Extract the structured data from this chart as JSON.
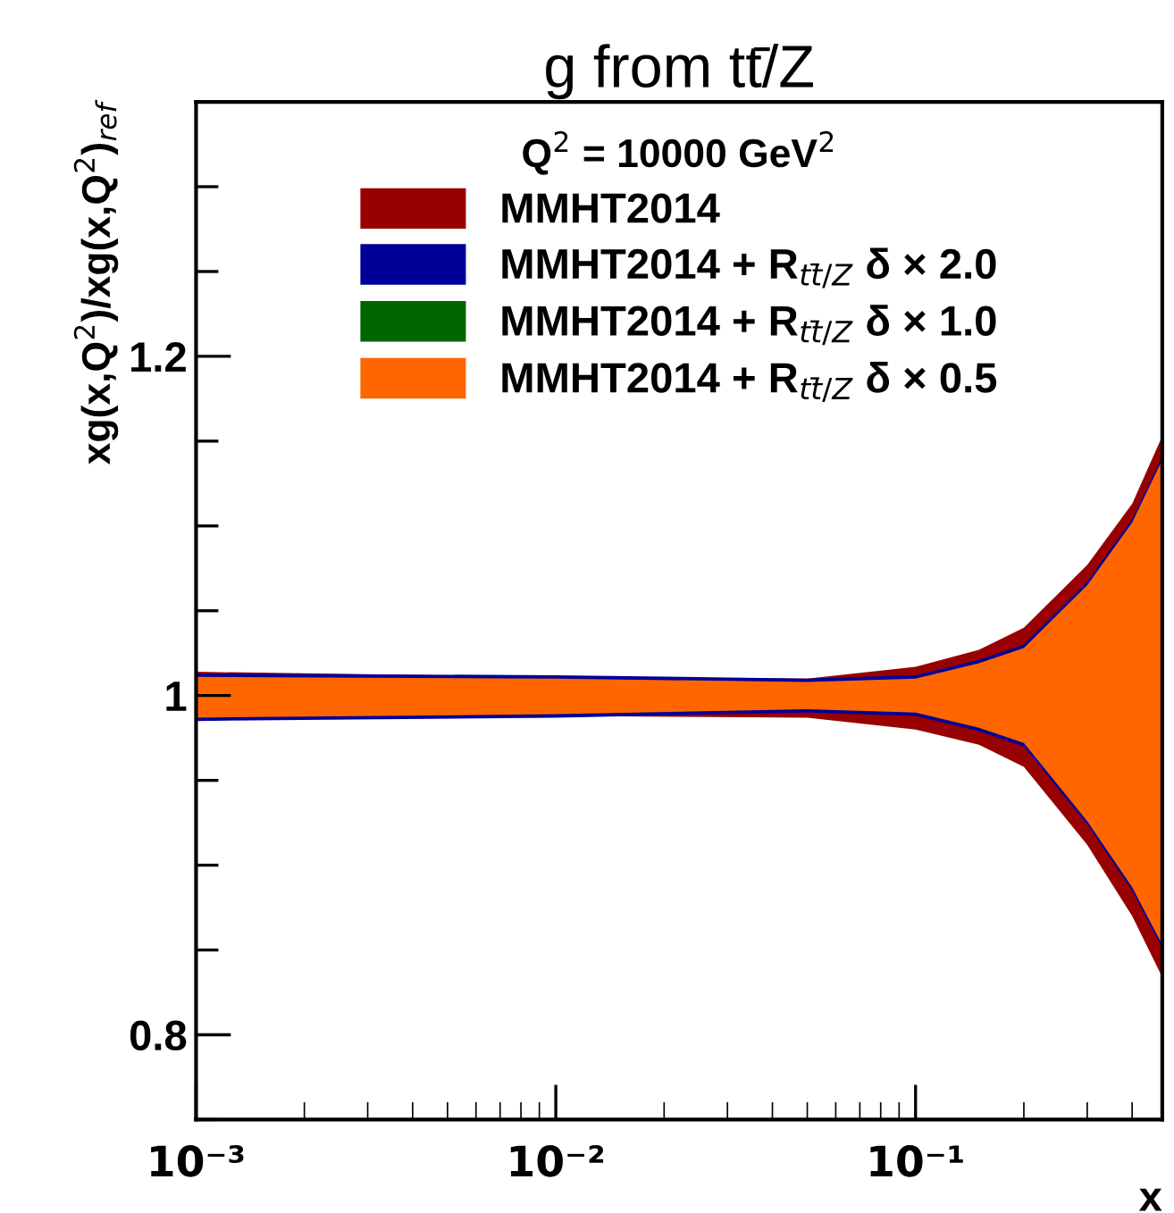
{
  "chart_data": {
    "type": "line",
    "title": "g from tt̄/Z",
    "xlabel": "x",
    "ylabel": "xg(x,Q$^{2}$)/xg(x,Q$^{2}$)$_{ref}$",
    "legend_title": "Q$^{2}$ = 10000 GeV$^{2}$",
    "x": [
      0.001,
      0.01,
      0.05,
      0.1,
      0.15,
      0.2,
      0.3,
      0.4,
      0.485
    ],
    "series": [
      {
        "name": "MMHT2014",
        "color": "#990000",
        "values": [
          null,
          null,
          null,
          null,
          null,
          null,
          null,
          null,
          null
        ],
        "lower": [
          0.986,
          0.988,
          0.987,
          0.98,
          0.971,
          0.958,
          0.912,
          0.87,
          0.834
        ],
        "upper": [
          1.014,
          1.011,
          1.01,
          1.017,
          1.027,
          1.04,
          1.077,
          1.113,
          1.153
        ]
      },
      {
        "name": "MMHT2014 + R$_{tt̄/Z}$ δ × 2.0",
        "color": "#000099",
        "values": [
          null,
          null,
          null,
          null,
          null,
          null,
          null,
          null,
          null
        ],
        "lower": [
          0.985,
          0.987,
          0.99,
          0.988,
          0.979,
          0.97,
          0.924,
          0.885,
          0.851
        ],
        "upper": [
          1.013,
          1.012,
          1.01,
          1.012,
          1.021,
          1.03,
          1.067,
          1.104,
          1.141
        ]
      },
      {
        "name": "MMHT2014 + R$_{tt̄/Z}$ δ × 1.0",
        "color": "#006600",
        "values": [
          null,
          null,
          null,
          null,
          null,
          null,
          null,
          null,
          null
        ],
        "lower": [
          null,
          null,
          null,
          null,
          null,
          null,
          null,
          null,
          null
        ],
        "upper": [
          null,
          null,
          null,
          null,
          null,
          null,
          null,
          null,
          null
        ]
      },
      {
        "name": "MMHT2014 + R$_{tt̄/Z}$ δ × 0.5",
        "color": "#ff6600",
        "values": [
          null,
          null,
          null,
          null,
          null,
          null,
          null,
          null,
          null
        ],
        "lower": [
          0.987,
          0.989,
          0.992,
          0.99,
          0.981,
          0.972,
          0.926,
          0.887,
          0.853
        ],
        "upper": [
          1.011,
          1.01,
          1.008,
          1.01,
          1.019,
          1.028,
          1.065,
          1.102,
          1.139
        ]
      }
    ],
    "log": "x",
    "xlim": [
      0.001,
      0.485
    ],
    "xticks": [
      {
        "value": 0.001,
        "label": "10⁻³"
      },
      {
        "value": 0.01,
        "label": "10⁻²"
      },
      {
        "value": 0.1,
        "label": "10⁻¹"
      }
    ],
    "ylim": [
      0.75,
      1.35
    ],
    "yticks": [
      {
        "value": 0.75,
        "label": null
      },
      0.8,
      {
        "value": 0.85,
        "label": null
      },
      {
        "value": 0.9,
        "label": null
      },
      {
        "value": 0.95,
        "label": null
      },
      {
        "value": 1.0,
        "label": "1"
      },
      {
        "value": 1.05,
        "label": null
      },
      {
        "value": 1.1,
        "label": null
      },
      {
        "value": 1.15,
        "label": null
      },
      1.2,
      {
        "value": 1.25,
        "label": null
      },
      {
        "value": 1.3,
        "label": null
      },
      {
        "value": 1.35,
        "label": null
      }
    ],
    "grid": false,
    "legend": "top"
  }
}
